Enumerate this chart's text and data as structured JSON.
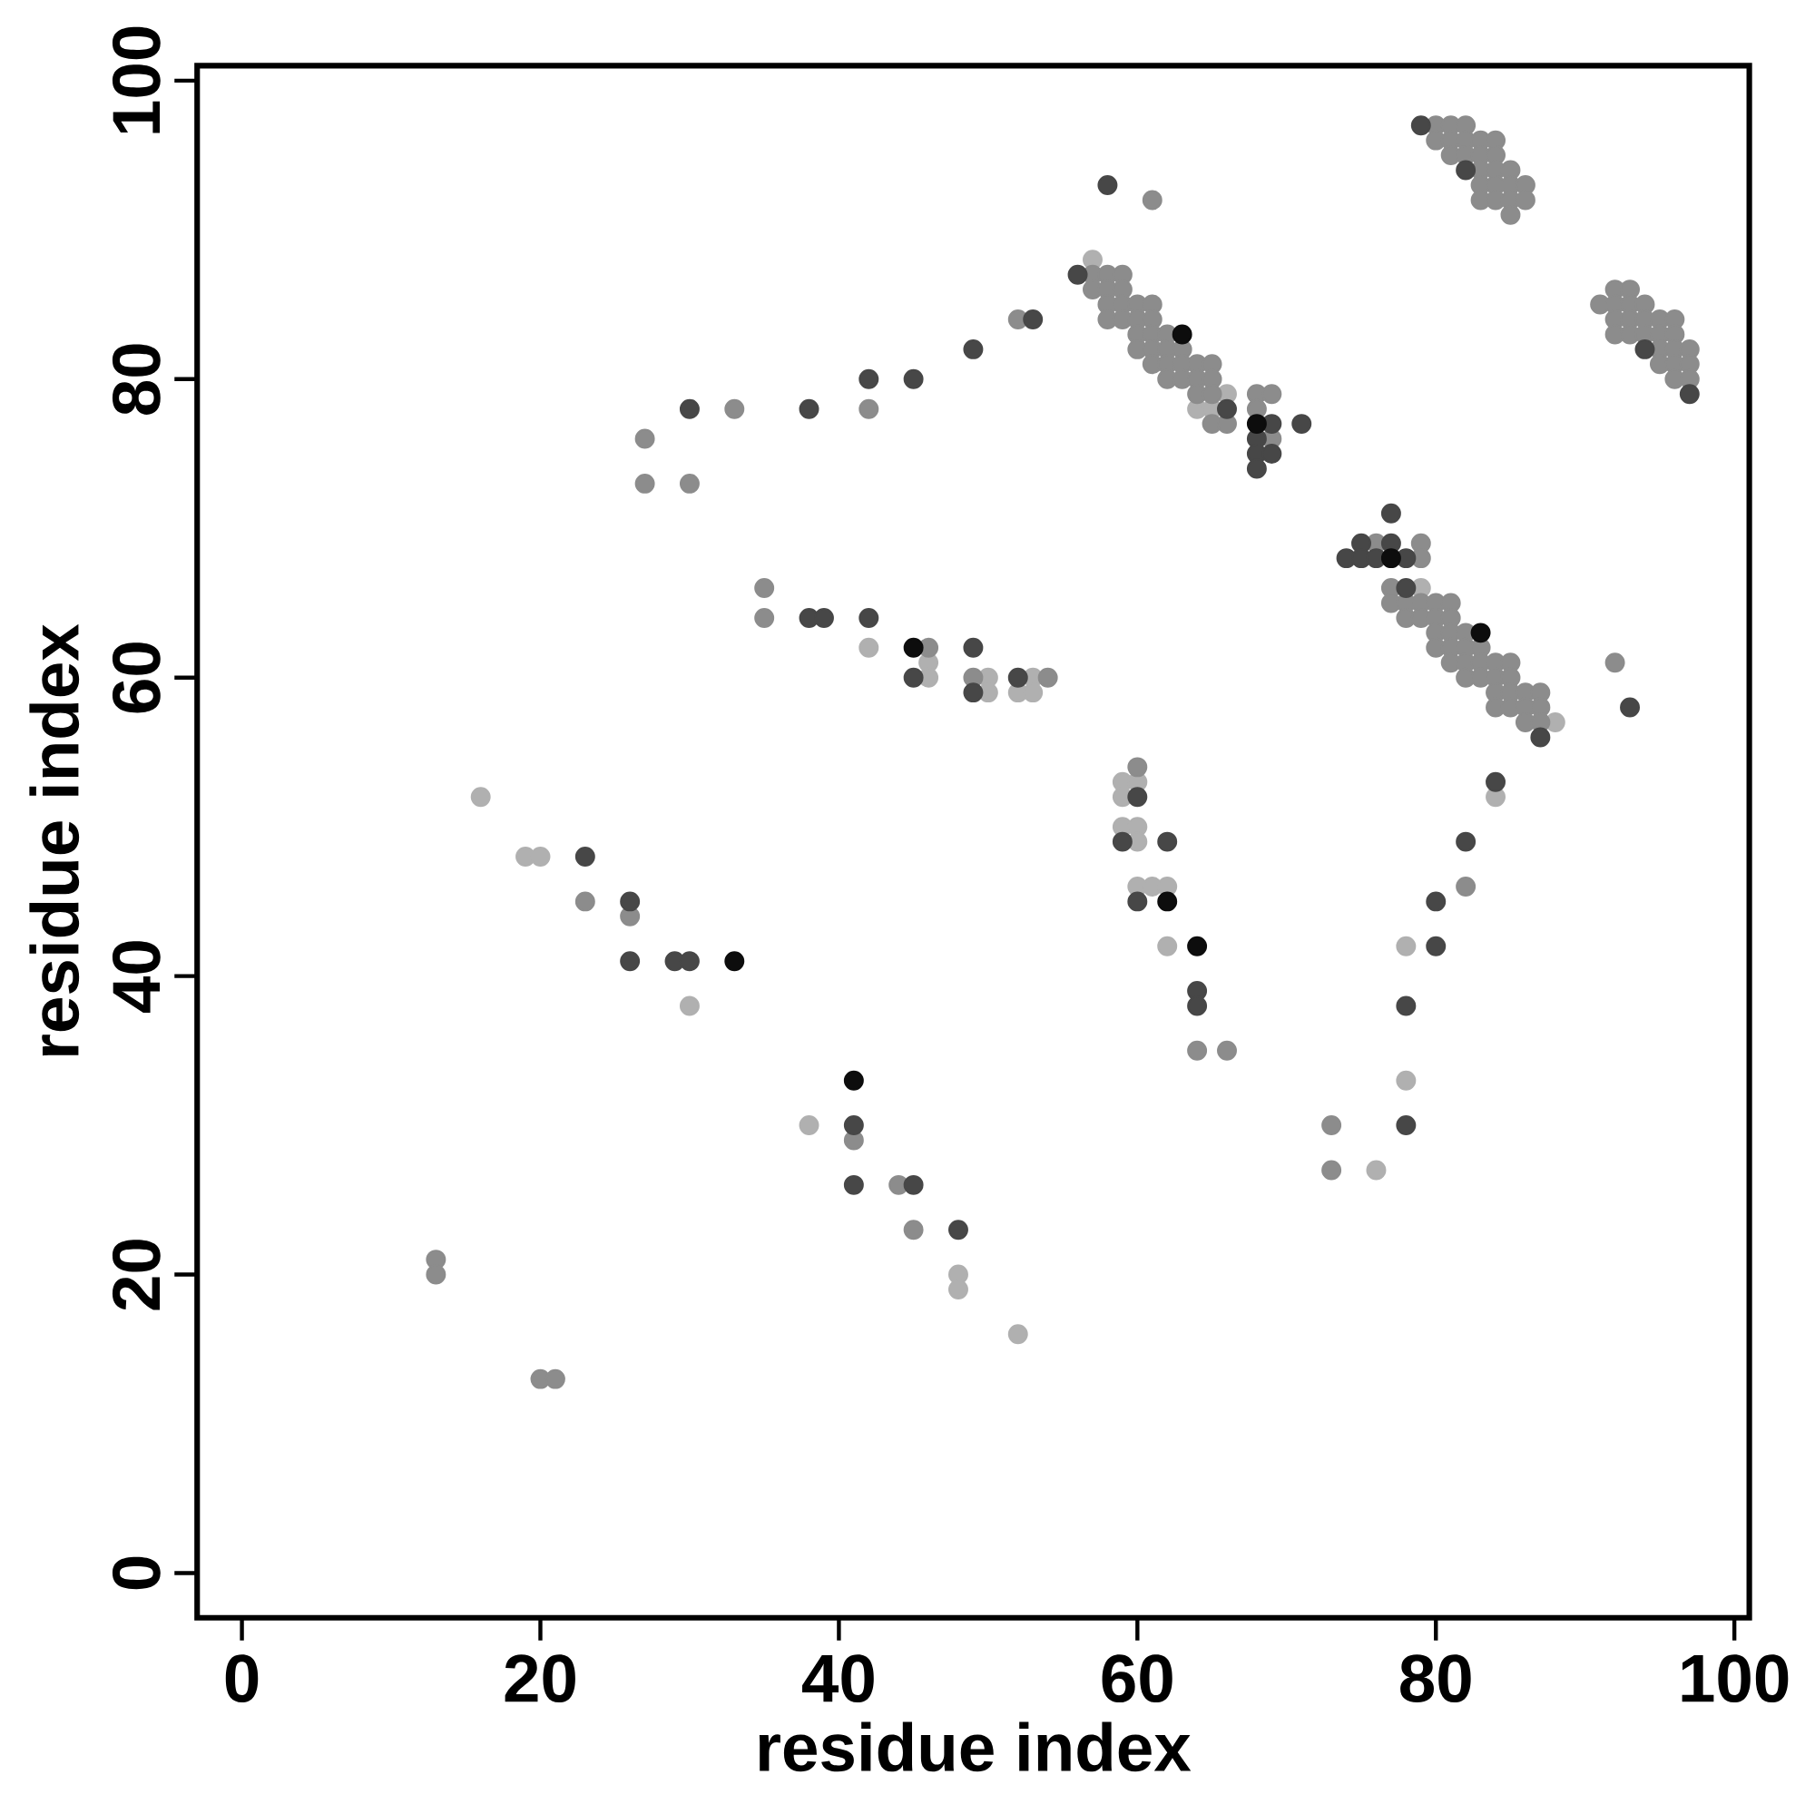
{
  "chart_data": {
    "type": "scatter",
    "xlabel": "residue index",
    "ylabel": "residue index",
    "xlim": [
      -3,
      101
    ],
    "ylim": [
      -3,
      101
    ],
    "xticks": [
      0,
      20,
      40,
      60,
      80,
      100
    ],
    "yticks": [
      0,
      20,
      40,
      60,
      80,
      100
    ],
    "grid": false,
    "marker": "circle",
    "series": [
      {
        "color": "#b0b0b0",
        "x": [
          57,
          66,
          64,
          65,
          79,
          88,
          59,
          60,
          59,
          59,
          60,
          60,
          60,
          61,
          62,
          62,
          16,
          19,
          20,
          30,
          38,
          42,
          46,
          46,
          50,
          53,
          52,
          53,
          50,
          48,
          48,
          52,
          76,
          78,
          78,
          84
        ],
        "values": [
          88,
          79,
          78,
          78,
          66,
          57,
          53,
          53,
          52,
          50,
          50,
          49,
          46,
          46,
          46,
          42,
          52,
          48,
          48,
          38,
          30,
          62,
          61,
          60,
          60,
          60,
          59,
          59,
          59,
          20,
          19,
          16,
          27,
          42,
          33,
          52
        ]
      },
      {
        "color": "#8c8c8c",
        "x": [
          57,
          58,
          59,
          57,
          58,
          59,
          58,
          59,
          60,
          61,
          58,
          59,
          60,
          61,
          60,
          61,
          62,
          60,
          61,
          62,
          63,
          61,
          62,
          63,
          64,
          65,
          62,
          63,
          64,
          65,
          64,
          65,
          68,
          69,
          68,
          65,
          66,
          69,
          80,
          81,
          82,
          80,
          81,
          82,
          83,
          84,
          81,
          82,
          83,
          84,
          83,
          84,
          85,
          83,
          84,
          85,
          86,
          83,
          84,
          85,
          86,
          85,
          92,
          93,
          91,
          92,
          93,
          94,
          92,
          93,
          94,
          95,
          96,
          92,
          93,
          94,
          95,
          96,
          95,
          96,
          97,
          95,
          96,
          97,
          96,
          97,
          76,
          79,
          79,
          77,
          77,
          78,
          79,
          80,
          81,
          78,
          79,
          80,
          81,
          80,
          81,
          82,
          80,
          81,
          82,
          83,
          81,
          82,
          83,
          84,
          85,
          82,
          83,
          84,
          85,
          84,
          85,
          86,
          87,
          84,
          85,
          86,
          87,
          86,
          87,
          60,
          64,
          66,
          13,
          13,
          20,
          21,
          23,
          26,
          27,
          27,
          30,
          33,
          35,
          35,
          42,
          46,
          44,
          45,
          52,
          54,
          61,
          92,
          82,
          73,
          73,
          41,
          49
        ],
        "values": [
          87,
          87,
          87,
          86,
          86,
          86,
          85,
          85,
          85,
          85,
          84,
          84,
          84,
          84,
          83,
          83,
          83,
          82,
          82,
          82,
          82,
          81,
          81,
          81,
          81,
          81,
          80,
          80,
          80,
          80,
          79,
          79,
          79,
          79,
          78,
          77,
          77,
          76,
          97,
          97,
          97,
          96,
          96,
          96,
          96,
          96,
          95,
          95,
          95,
          95,
          94,
          94,
          94,
          93,
          93,
          93,
          93,
          92,
          92,
          92,
          92,
          91,
          86,
          86,
          85,
          85,
          85,
          85,
          84,
          84,
          84,
          84,
          84,
          83,
          83,
          83,
          83,
          83,
          82,
          82,
          82,
          81,
          81,
          81,
          80,
          80,
          69,
          69,
          68,
          66,
          65,
          65,
          65,
          65,
          65,
          64,
          64,
          64,
          64,
          63,
          63,
          63,
          62,
          62,
          62,
          62,
          61,
          61,
          61,
          61,
          61,
          60,
          60,
          60,
          60,
          59,
          59,
          59,
          59,
          58,
          58,
          58,
          58,
          57,
          57,
          54,
          35,
          35,
          21,
          20,
          13,
          13,
          45,
          44,
          76,
          73,
          73,
          78,
          66,
          64,
          78,
          62,
          26,
          23,
          84,
          60,
          92,
          61,
          46,
          30,
          27,
          29,
          60
        ]
      },
      {
        "color": "#474747",
        "x": [
          56,
          66,
          69,
          71,
          68,
          68,
          69,
          68,
          79,
          82,
          94,
          97,
          77,
          75,
          77,
          74,
          75,
          76,
          78,
          78,
          87,
          93,
          84,
          82,
          80,
          80,
          78,
          78,
          60,
          59,
          62,
          60,
          64,
          64,
          41,
          41,
          45,
          48,
          23,
          26,
          26,
          29,
          30,
          38,
          39,
          42,
          45,
          49,
          49,
          52,
          53,
          49,
          45,
          42,
          38,
          30,
          58
        ],
        "values": [
          87,
          78,
          77,
          77,
          76,
          75,
          75,
          74,
          97,
          94,
          82,
          79,
          71,
          69,
          69,
          68,
          68,
          68,
          68,
          66,
          56,
          58,
          53,
          49,
          45,
          42,
          38,
          30,
          52,
          49,
          49,
          45,
          39,
          38,
          30,
          26,
          26,
          23,
          48,
          45,
          41,
          41,
          41,
          64,
          64,
          64,
          60,
          62,
          59,
          60,
          84,
          82,
          80,
          80,
          78,
          78,
          93
        ]
      },
      {
        "color": "#0d0d0d",
        "x": [
          63,
          68,
          77,
          83,
          62,
          64,
          33,
          41,
          45
        ],
        "values": [
          83,
          77,
          68,
          63,
          45,
          42,
          41,
          33,
          62
        ]
      }
    ]
  }
}
